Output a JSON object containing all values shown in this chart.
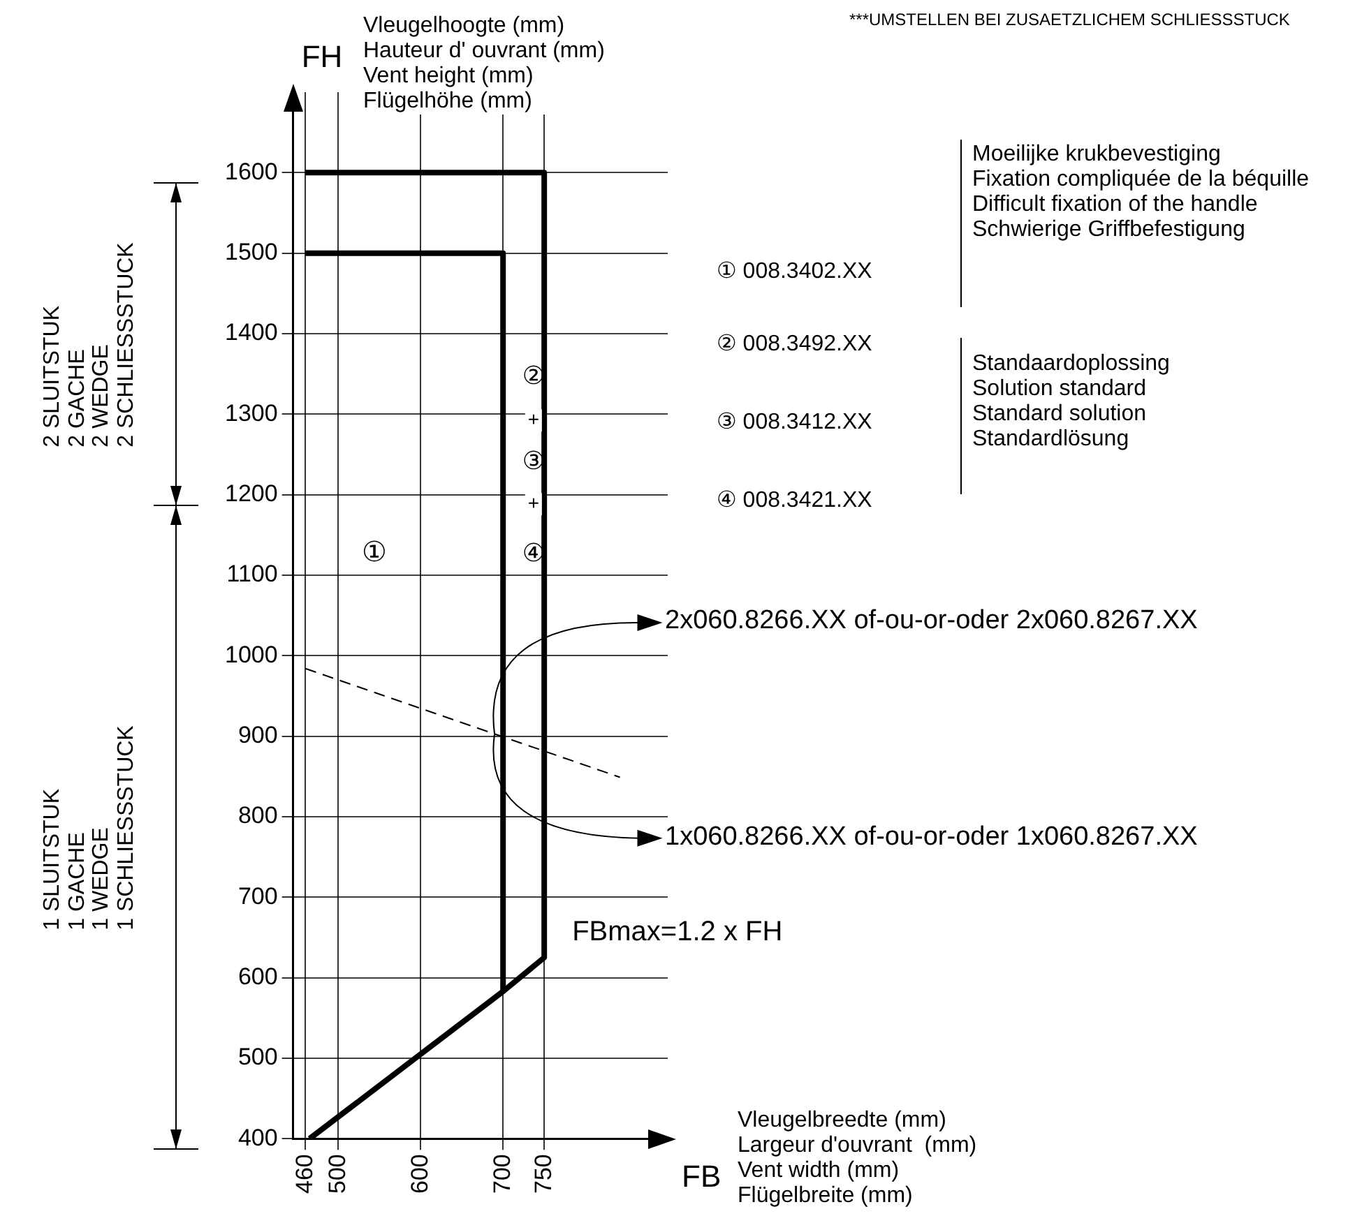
{
  "chart_data": {
    "type": "line",
    "xlabel": "FB",
    "ylabel": "FH",
    "xlim": [
      445,
      900
    ],
    "ylim": [
      400,
      1700
    ],
    "xticks": [
      460,
      500,
      600,
      700,
      750
    ],
    "yticks": [
      400,
      500,
      600,
      700,
      800,
      900,
      1000,
      1100,
      1200,
      1300,
      1400,
      1500,
      1600
    ],
    "grid": true,
    "legend": false,
    "marker": "none",
    "line_style": "solid",
    "series": [
      {
        "color": "#000000",
        "x": [
          465,
          700,
          750,
          750,
          460
        ],
        "values": [
          400,
          583,
          625,
          1600,
          1600
        ]
      },
      {
        "color": "#000000",
        "x": [
          700,
          700,
          460
        ],
        "values": [
          583,
          1500,
          1500
        ]
      },
      {
        "color": "#000000",
        "line_style": "dashed",
        "x": [
          460,
          842
        ],
        "values": [
          984,
          849
        ]
      }
    ],
    "annotations": [
      "***UMSTELLEN BEI ZUSAETZLICHEM SCHLIESSSTUCK",
      "Vleugelhoogte (mm)\nHauteur d' ouvrant (mm)\nVent height (mm)\nFlügelhöhe (mm)",
      "Vleugelbreedte (mm)\nLargeur d'ouvrant  (mm)\nVent width (mm)\nFlügelbreite (mm)",
      "Moeilijke krukbevestiging\nFixation compliquée de la béquille\nDifficult fixation of the handle\nSchwierige Griffbefestigung",
      "Standaardoplossing\nSolution standard\nStandard solution\nStandardlösung",
      "① 008.3402.XX",
      "② 008.3492.XX",
      "③ 008.3412.XX",
      "④ 008.3421.XX",
      "2x060.8266.XX of-ou-or-oder 2x060.8267.XX",
      "1x060.8266.XX of-ou-or-oder 1x060.8267.XX",
      {
        "text": "FBmax=1.2 x FH",
        "x": 750,
        "y": 625
      },
      "①",
      "②",
      "+",
      "③",
      "+",
      "④",
      "2 SLUITSTUK\n2 GACHE\n2 WEDGE\n2 SCHLIESSSTUCK",
      "1 SLUITSTUK\n1 GACHE\n1 WEDGE\n1 SCHLIESSSTUCK"
    ]
  }
}
